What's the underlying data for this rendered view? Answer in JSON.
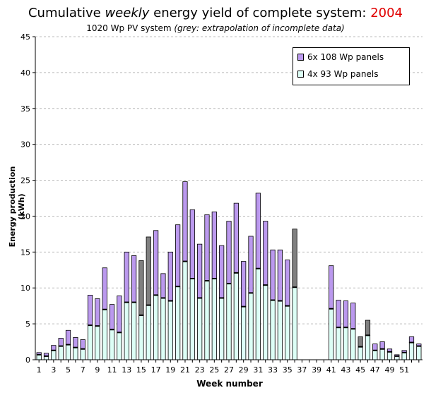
{
  "header": {
    "title_prefix": "Cumulative ",
    "title_emph": "weekly",
    "title_mid": " energy yield of complete system: ",
    "title_year": "2004",
    "subtitle_main": "1020 Wp PV system ",
    "subtitle_emph": "(grey: extrapolation of incomplete data)"
  },
  "colors": {
    "lower": "#ddfff6",
    "upper": "#bb99ee",
    "grey": "#808080",
    "grid": "#bbbbbb",
    "year": "#e00000"
  },
  "chart_data": {
    "type": "bar",
    "stacked": true,
    "xlabel": "Week number",
    "ylabel": "Energy production (kWh)",
    "ylim": [
      0,
      45
    ],
    "yticks": [
      0,
      5,
      10,
      15,
      20,
      25,
      30,
      35,
      40,
      45
    ],
    "xtick_labels": [
      1,
      3,
      5,
      7,
      9,
      11,
      13,
      15,
      17,
      19,
      21,
      23,
      25,
      27,
      29,
      31,
      33,
      35,
      37,
      39,
      41,
      43,
      45,
      47,
      49,
      51
    ],
    "grid": "horizontal dashed",
    "legend_position": "top-right",
    "weeks": [
      1,
      2,
      3,
      4,
      5,
      6,
      7,
      8,
      9,
      10,
      11,
      12,
      13,
      14,
      15,
      16,
      17,
      18,
      19,
      20,
      21,
      22,
      23,
      24,
      25,
      26,
      27,
      28,
      29,
      30,
      31,
      32,
      33,
      34,
      35,
      36,
      37,
      38,
      39,
      40,
      41,
      42,
      43,
      44,
      45,
      46,
      47,
      48,
      49,
      50,
      51,
      52,
      53
    ],
    "series": [
      {
        "name": "4x 93 Wp panels",
        "values": [
          0.7,
          0.5,
          1.3,
          1.9,
          2.1,
          1.7,
          1.5,
          4.8,
          4.7,
          7.0,
          4.2,
          3.8,
          8.0,
          8.0,
          6.2,
          7.6,
          9.0,
          8.6,
          8.2,
          10.2,
          13.7,
          11.3,
          8.6,
          11.0,
          11.3,
          8.6,
          10.6,
          12.1,
          7.4,
          9.3,
          12.7,
          10.4,
          8.3,
          8.2,
          7.5,
          10.1,
          0,
          0,
          0,
          0,
          7.1,
          4.5,
          4.5,
          4.3,
          1.8,
          3.4,
          1.3,
          1.5,
          1.1,
          0.5,
          1.0,
          2.4,
          1.9
        ]
      },
      {
        "name": "6x 108 Wp panels",
        "values": [
          1.0,
          0.9,
          2.0,
          3.0,
          4.1,
          3.1,
          2.8,
          9.0,
          8.5,
          12.8,
          7.7,
          8.9,
          15.0,
          14.5,
          13.8,
          17.1,
          18.0,
          12.0,
          15.0,
          18.8,
          24.8,
          20.9,
          16.1,
          20.2,
          20.6,
          15.9,
          19.3,
          21.8,
          13.7,
          17.2,
          23.2,
          19.3,
          15.3,
          15.3,
          13.9,
          18.2,
          0,
          0,
          0,
          0,
          13.1,
          8.3,
          8.2,
          7.9,
          3.2,
          5.5,
          2.2,
          2.5,
          1.5,
          0.7,
          1.3,
          3.2,
          2.2
        ]
      }
    ],
    "extrapolated_weeks": [
      15,
      16,
      36,
      45,
      46
    ]
  }
}
